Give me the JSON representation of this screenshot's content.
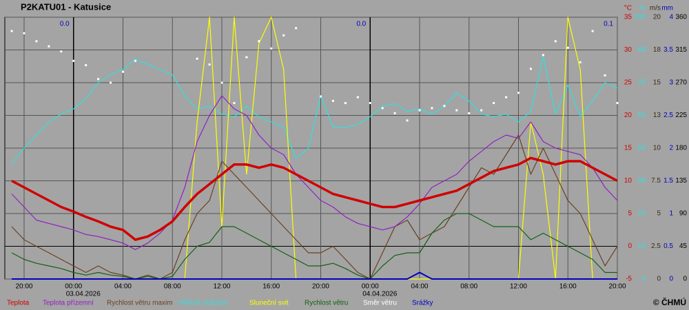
{
  "chart_data": {
    "type": "line",
    "title": "P2KATU01 - Katusice",
    "copyright": "© ČHMÚ",
    "xlim": [
      -5.56,
      44
    ],
    "xticks": [
      {
        "value": -4,
        "label": "20:00"
      },
      {
        "value": 0,
        "label": "00:00"
      },
      {
        "value": 4,
        "label": "04:00"
      },
      {
        "value": 8,
        "label": "08:00"
      },
      {
        "value": 12,
        "label": "12:00"
      },
      {
        "value": 16,
        "label": "16:00"
      },
      {
        "value": 20,
        "label": "20:00"
      },
      {
        "value": 24,
        "label": "00:00"
      },
      {
        "value": 28,
        "label": "04:00"
      },
      {
        "value": 32,
        "label": "08:00"
      },
      {
        "value": 36,
        "label": "12:00"
      },
      {
        "value": 40,
        "label": "16:00"
      },
      {
        "value": 44,
        "label": "20:00"
      }
    ],
    "dates": [
      {
        "x": 0,
        "label": "03.04.2026"
      },
      {
        "x": 24,
        "label": "04.04.2026"
      }
    ],
    "daily_totals": {
      "x": [
        0,
        24,
        44
      ],
      "values": [
        0,
        0,
        0.1
      ],
      "value_labels": [
        "0.0",
        "0.0",
        "0.1"
      ]
    },
    "grid": true,
    "axes": [
      {
        "unit": "°C",
        "color": "#d00000",
        "lim": [
          -5,
          35
        ],
        "ticks": [
          -5,
          0,
          5,
          10,
          15,
          20,
          25,
          30,
          35
        ]
      },
      {
        "unit": "%",
        "color": "#30e0e0",
        "lim": [
          0,
          100
        ],
        "ticks": [
          0,
          {
            "value": 12.5,
            "label": "13"
          },
          25,
          {
            "value": 37.5,
            "label": "38"
          },
          50,
          {
            "value": 62.5,
            "label": "63"
          },
          75,
          {
            "value": 87.5,
            "label": "88"
          },
          100
        ]
      },
      {
        "unit": "m/s",
        "color": "#3a2a1a",
        "lim": [
          0,
          20
        ],
        "ticks": [
          0,
          2.5,
          5,
          7.5,
          10,
          {
            "value": 12.5,
            "label": "13"
          },
          15,
          {
            "value": 17.5,
            "label": "18"
          },
          20
        ]
      },
      {
        "unit": "mm",
        "color": "#0000c0",
        "lim": [
          0,
          4
        ],
        "ticks": [
          0,
          0.5,
          1,
          1.5,
          2,
          2.5,
          3,
          3.5,
          4
        ]
      },
      {
        "color": "#000000",
        "lim": [
          0,
          360
        ],
        "ticks": [
          0,
          45,
          90,
          135,
          180,
          225,
          270,
          315,
          360
        ]
      }
    ],
    "x": [
      -5,
      -4,
      -3,
      -2,
      -1,
      0,
      1,
      2,
      3,
      4,
      5,
      6,
      7,
      8,
      9,
      10,
      11,
      12,
      13,
      14,
      15,
      16,
      17,
      18,
      19,
      20,
      21,
      22,
      23,
      24,
      25,
      26,
      27,
      28,
      29,
      30,
      31,
      32,
      33,
      34,
      35,
      36,
      37,
      38,
      39,
      40,
      41,
      42,
      43,
      44
    ],
    "series": [
      {
        "name": "Teplota",
        "color": "#d00000",
        "axis": 0,
        "style": "line",
        "width": 3.5,
        "values": [
          10,
          9,
          8,
          7,
          6,
          5.3,
          4.5,
          3.8,
          3,
          2.5,
          1,
          1.5,
          2.5,
          3.8,
          6,
          8,
          9.5,
          11,
          12.5,
          12.5,
          12,
          12.5,
          12,
          11,
          10,
          9,
          8,
          7.5,
          7,
          6.5,
          6,
          6,
          6.5,
          7,
          7.5,
          8,
          8.5,
          9.5,
          10.5,
          11.5,
          12,
          12.5,
          13.5,
          13,
          12.5,
          13,
          13,
          12,
          11,
          10
        ]
      },
      {
        "name": "Teplota přízemní",
        "color": "#9020c0",
        "axis": 0,
        "style": "line",
        "width": 1.2,
        "values": [
          8,
          6,
          4,
          3.5,
          3,
          2.5,
          1.8,
          1.5,
          1,
          0.5,
          -0.5,
          0.5,
          2,
          4,
          9,
          16,
          20,
          23,
          21,
          20,
          17,
          15,
          14,
          11,
          9,
          7,
          6,
          4.5,
          3.5,
          3,
          2.5,
          3,
          4.5,
          6.5,
          9,
          10,
          11,
          13,
          14.5,
          16,
          17,
          16.5,
          19,
          16,
          15,
          14.5,
          14,
          12,
          9,
          7
        ]
      },
      {
        "name": "Rychlost větru maxim",
        "color": "#6a4020",
        "axis": 2,
        "style": "line",
        "width": 1.2,
        "values": [
          4,
          3,
          2.5,
          2,
          1.5,
          1,
          0.5,
          1,
          0.5,
          0.3,
          0,
          0.3,
          0,
          0.5,
          3,
          5,
          6,
          9,
          8,
          7,
          6,
          5,
          4,
          3,
          2,
          2,
          2.5,
          1.5,
          0.5,
          0,
          2,
          4,
          4.5,
          3,
          3.5,
          4,
          5.5,
          7,
          8.5,
          8,
          9.5,
          11,
          8,
          10,
          8,
          6,
          5,
          3,
          1,
          2.5
        ]
      },
      {
        "name": "Vlhkost vzduchu",
        "color": "#30e0e0",
        "axis": 1,
        "style": "line",
        "width": 1.2,
        "values": [
          44,
          50,
          55,
          60,
          63,
          65,
          69,
          75,
          78,
          80,
          84,
          82,
          80,
          78,
          70,
          65,
          66,
          63,
          62,
          66,
          62,
          60,
          58,
          46,
          50,
          70,
          58,
          58,
          59,
          62,
          66,
          67,
          64,
          65,
          63,
          66,
          71,
          68,
          63,
          62,
          63,
          60,
          64,
          85,
          63,
          74,
          62,
          68,
          75,
          73
        ]
      },
      {
        "name": "Sluneční svit",
        "color": "#ffff00",
        "axis": 1,
        "style": "line",
        "width": 1.2,
        "values": [
          0,
          0,
          0,
          0,
          0,
          0,
          0,
          0,
          0,
          0,
          0,
          0,
          0,
          0,
          0,
          60,
          100,
          20,
          100,
          40,
          90,
          100,
          80,
          0,
          0,
          0,
          0,
          0,
          0,
          0,
          0,
          0,
          0,
          0,
          0,
          0,
          0,
          0,
          0,
          0,
          0,
          0,
          60,
          40,
          0,
          100,
          80,
          0,
          0,
          0
        ]
      },
      {
        "name": "Rychlost větru",
        "color": "#106010",
        "axis": 2,
        "style": "line",
        "width": 1.2,
        "values": [
          2,
          1.5,
          1.2,
          1,
          0.8,
          0.5,
          0.3,
          0.5,
          0.3,
          0.2,
          0,
          0.2,
          0,
          0.2,
          1.5,
          2.5,
          2.8,
          4,
          4,
          3.5,
          3,
          2.5,
          2,
          1.5,
          1,
          1,
          1.2,
          0.8,
          0.3,
          0,
          1,
          1.8,
          2,
          2,
          3.5,
          4.5,
          5,
          5,
          4.5,
          4,
          4,
          4,
          3,
          3.5,
          3,
          2.5,
          2,
          1.5,
          0.5,
          0.5
        ]
      },
      {
        "name": "Směr větru",
        "color": "#ffffff",
        "axis": 4,
        "style": "markers",
        "values": [
          341,
          338,
          327,
          320,
          313,
          300,
          294,
          275,
          270,
          285,
          300,
          null,
          null,
          null,
          null,
          303,
          295,
          270,
          242,
          305,
          327,
          317,
          335,
          345,
          null,
          251,
          245,
          242,
          250,
          242,
          235,
          228,
          218,
          232,
          235,
          238,
          232,
          228,
          232,
          242,
          250,
          256,
          289,
          308,
          327,
          318,
          298,
          341,
          280,
          242
        ]
      },
      {
        "name": "Srážky",
        "color": "#0000c0",
        "axis": 3,
        "style": "line",
        "width": 2,
        "values": [
          0,
          0,
          0,
          0,
          0,
          0,
          0,
          0,
          0,
          0,
          0,
          0,
          0,
          0,
          0,
          0,
          0,
          0,
          0,
          0,
          0,
          0,
          0,
          0,
          0,
          0,
          0,
          0,
          0,
          0,
          0,
          0,
          0,
          0.1,
          0,
          0,
          0,
          0,
          0,
          0,
          0,
          0,
          0,
          0,
          0,
          0,
          0,
          0,
          0,
          0
        ]
      }
    ]
  }
}
